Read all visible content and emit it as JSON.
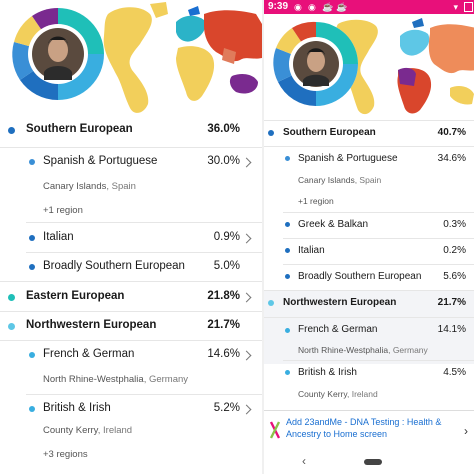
{
  "colors": {
    "southern": "#1f6fbf",
    "southern_sub": "#3a8fd6",
    "eastern": "#1fbfb8",
    "northwestern": "#5ec7e6",
    "northwestern_sub": "#39aee0",
    "status_bar": "#e8107a"
  },
  "left": {
    "rows": [
      {
        "label": "Southern European",
        "pct": "36.0%"
      },
      {
        "label": "Spanish & Portuguese",
        "pct": "30.0%",
        "sub": "Canary Islands",
        "sub_country": ", Spain",
        "more": "+1 region"
      },
      {
        "label": "Italian",
        "pct": "0.9%"
      },
      {
        "label": "Broadly Southern European",
        "pct": "5.0%"
      },
      {
        "label": "Eastern European",
        "pct": "21.8%"
      },
      {
        "label": "Northwestern European",
        "pct": "21.7%"
      },
      {
        "label": "French & German",
        "pct": "14.6%",
        "sub": "North Rhine-Westphalia",
        "sub_country": ", Germany"
      },
      {
        "label": "British & Irish",
        "pct": "5.2%",
        "sub": "County Kerry",
        "sub_country": ", Ireland",
        "more": "+3 regions"
      }
    ]
  },
  "right": {
    "status": {
      "time": "9:39"
    },
    "rows": [
      {
        "label": "Southern European",
        "pct": "40.7%"
      },
      {
        "label": "Spanish & Portuguese",
        "pct": "34.6%",
        "sub": "Canary Islands",
        "sub_country": ", Spain",
        "more": "+1 region"
      },
      {
        "label": "Greek & Balkan",
        "pct": "0.3%"
      },
      {
        "label": "Italian",
        "pct": "0.2%"
      },
      {
        "label": "Broadly Southern European",
        "pct": "5.6%"
      },
      {
        "label": "Northwestern European",
        "pct": "21.7%"
      },
      {
        "label": "French & German",
        "pct": "14.1%",
        "sub": "North Rhine-Westphalia",
        "sub_country": ", Germany"
      },
      {
        "label": "British & Irish",
        "pct": "4.5%",
        "sub": "County Kerry",
        "sub_country": ", Ireland"
      }
    ],
    "ad": {
      "text": "Add 23andMe - DNA Testing : Health & Ancestry to Home screen"
    },
    "nav": {
      "back": "‹"
    }
  }
}
